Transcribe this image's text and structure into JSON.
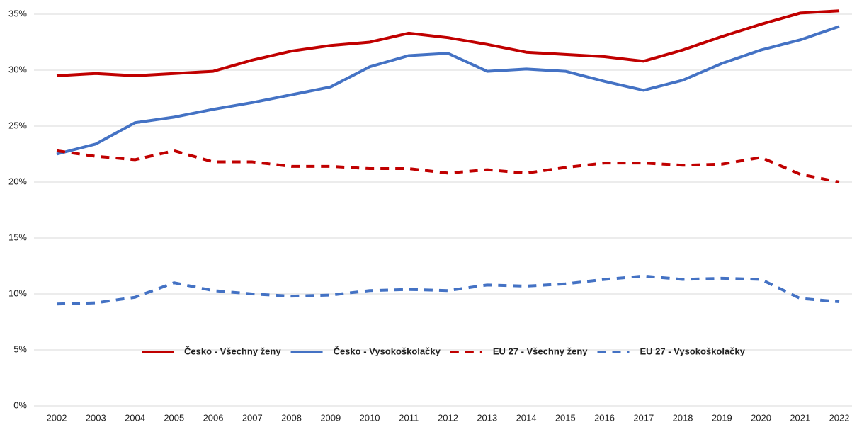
{
  "chart_data": {
    "type": "line",
    "categories": [
      "2002",
      "2003",
      "2004",
      "2005",
      "2006",
      "2007",
      "2008",
      "2009",
      "2010",
      "2011",
      "2012",
      "2013",
      "2014",
      "2015",
      "2016",
      "2017",
      "2018",
      "2019",
      "2020",
      "2021",
      "2022"
    ],
    "series": [
      {
        "name": "Česko - Všechny ženy",
        "color": "#c00000",
        "style": "solid",
        "values": [
          29.5,
          29.7,
          29.5,
          29.7,
          29.9,
          30.9,
          31.7,
          32.2,
          32.5,
          33.3,
          32.9,
          32.3,
          31.6,
          31.4,
          31.2,
          30.8,
          31.8,
          33.0,
          34.1,
          35.1,
          35.3
        ]
      },
      {
        "name": "Česko - Vysokoškolačky",
        "color": "#4472c4",
        "style": "solid",
        "values": [
          22.5,
          23.4,
          25.3,
          25.8,
          26.5,
          27.1,
          27.8,
          28.5,
          30.3,
          31.3,
          31.5,
          29.9,
          30.1,
          29.9,
          29.0,
          28.2,
          29.1,
          30.6,
          31.8,
          32.7,
          33.9
        ]
      },
      {
        "name": "EU 27 - Všechny ženy",
        "color": "#c00000",
        "style": "dashed",
        "values": [
          22.8,
          22.3,
          22.0,
          22.8,
          21.8,
          21.8,
          21.4,
          21.4,
          21.2,
          21.2,
          20.8,
          21.1,
          20.8,
          21.3,
          21.7,
          21.7,
          21.5,
          21.6,
          22.2,
          20.7,
          20.0
        ]
      },
      {
        "name": "EU 27 - Vysokoškolačky",
        "color": "#4472c4",
        "style": "dashed",
        "values": [
          9.1,
          9.2,
          9.7,
          11.0,
          10.3,
          10.0,
          9.8,
          9.9,
          10.3,
          10.4,
          10.3,
          10.8,
          10.7,
          10.9,
          11.3,
          11.6,
          11.3,
          11.4,
          11.3,
          9.6,
          9.3
        ]
      }
    ],
    "ylim": [
      0,
      35
    ],
    "yticks": [
      {
        "value": 0,
        "label": "0%"
      },
      {
        "value": 5,
        "label": "5%"
      },
      {
        "value": 10,
        "label": "10%"
      },
      {
        "value": 15,
        "label": "15%"
      },
      {
        "value": 20,
        "label": "20%"
      },
      {
        "value": 25,
        "label": "25%"
      },
      {
        "value": 30,
        "label": "30%"
      },
      {
        "value": 35,
        "label": "35%"
      }
    ],
    "grid": true,
    "legend": "inside-bottom"
  }
}
